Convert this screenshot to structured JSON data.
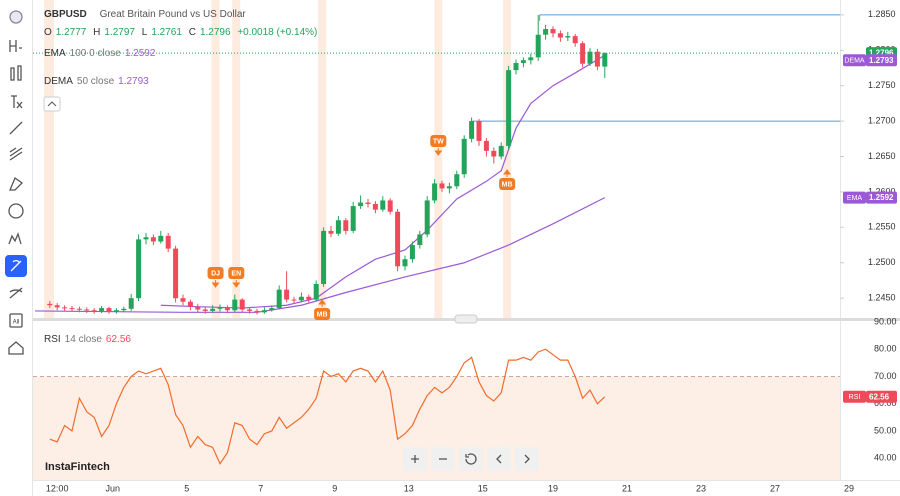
{
  "chart_data": {
    "type": "candlestick",
    "symbol": "GBPUSD",
    "description": "Great Britain Pound vs US Dollar",
    "ohlc_labels": [
      "O",
      "H",
      "L",
      "C"
    ],
    "change": "+0.0018 (+0.14%)",
    "up_color": "#22a45a",
    "down_color": "#ee4a5a",
    "xlim": [
      0,
      110
    ],
    "xticks": [
      {
        "value": 3,
        "label": "12:00"
      },
      {
        "value": 10.5,
        "label": "Jun"
      },
      {
        "value": 20.5,
        "label": "5"
      },
      {
        "value": 30.5,
        "label": "7"
      },
      {
        "value": 40.5,
        "label": "9"
      },
      {
        "value": 50.5,
        "label": "13"
      },
      {
        "value": 60.5,
        "label": "15"
      },
      {
        "value": 70,
        "label": "19"
      },
      {
        "value": 80,
        "label": "21"
      },
      {
        "value": 90,
        "label": "23"
      },
      {
        "value": 100,
        "label": "27"
      },
      {
        "value": 110,
        "label": "29"
      }
    ],
    "ylim": [
      1.2422,
      1.2871
    ],
    "yticks": [
      {
        "value": 1.245,
        "label": "1.2450"
      },
      {
        "value": 1.25,
        "label": "1.2500"
      },
      {
        "value": 1.255,
        "label": "1.2550"
      },
      {
        "value": 1.26,
        "label": "1.2600"
      },
      {
        "value": 1.265,
        "label": "1.2650"
      },
      {
        "value": 1.27,
        "label": "1.2700"
      },
      {
        "value": 1.275,
        "label": "1.2750"
      },
      {
        "value": 1.28,
        "label": "1.2800"
      },
      {
        "value": 1.285,
        "label": "1.2850"
      }
    ],
    "x": [
      2,
      3,
      4,
      5,
      6,
      7,
      8,
      9,
      10,
      11,
      12,
      13,
      14,
      15,
      16,
      17,
      18,
      19,
      20,
      21,
      22,
      23,
      24,
      25,
      26,
      27,
      28,
      29,
      30,
      31,
      32,
      33,
      34,
      35,
      36,
      37,
      38,
      39,
      40,
      41,
      42,
      43,
      44,
      45,
      46,
      47,
      48,
      49,
      50,
      51,
      52,
      53,
      54,
      55,
      56,
      57,
      58,
      59,
      60,
      61,
      62,
      63,
      64,
      65,
      66,
      67,
      68,
      69,
      70,
      71,
      72,
      73,
      74,
      75,
      76,
      77
    ],
    "ohlc": [
      [
        1.2442,
        1.2446,
        1.2436,
        1.244
      ],
      [
        1.244,
        1.2443,
        1.2433,
        1.2437
      ],
      [
        1.2437,
        1.244,
        1.2432,
        1.2436
      ],
      [
        1.2436,
        1.2439,
        1.2431,
        1.2435
      ],
      [
        1.2435,
        1.2438,
        1.243,
        1.2434
      ],
      [
        1.2434,
        1.2437,
        1.2429,
        1.2433
      ],
      [
        1.2433,
        1.2436,
        1.2428,
        1.2432
      ],
      [
        1.2432,
        1.2439,
        1.2429,
        1.2436
      ],
      [
        1.2436,
        1.2438,
        1.2428,
        1.2431
      ],
      [
        1.2431,
        1.2436,
        1.2428,
        1.2433
      ],
      [
        1.2433,
        1.2438,
        1.243,
        1.2435
      ],
      [
        1.2435,
        1.2456,
        1.2432,
        1.245
      ],
      [
        1.245,
        1.254,
        1.2446,
        1.2533
      ],
      [
        1.2533,
        1.2542,
        1.2526,
        1.2536
      ],
      [
        1.2536,
        1.254,
        1.2525,
        1.253
      ],
      [
        1.253,
        1.2545,
        1.2527,
        1.2538
      ],
      [
        1.2538,
        1.2542,
        1.2515,
        1.252
      ],
      [
        1.252,
        1.2524,
        1.2444,
        1.245
      ],
      [
        1.245,
        1.2455,
        1.244,
        1.2445
      ],
      [
        1.2445,
        1.2448,
        1.2433,
        1.2438
      ],
      [
        1.2438,
        1.2442,
        1.243,
        1.2434
      ],
      [
        1.2434,
        1.2438,
        1.2428,
        1.2432
      ],
      [
        1.2432,
        1.244,
        1.2429,
        1.2435
      ],
      [
        1.2435,
        1.2441,
        1.2431,
        1.2437
      ],
      [
        1.2437,
        1.244,
        1.2429,
        1.2433
      ],
      [
        1.2433,
        1.2455,
        1.243,
        1.2448
      ],
      [
        1.2448,
        1.245,
        1.243,
        1.2434
      ],
      [
        1.2434,
        1.2437,
        1.2428,
        1.2432
      ],
      [
        1.2432,
        1.2435,
        1.2427,
        1.243
      ],
      [
        1.243,
        1.2437,
        1.2428,
        1.2433
      ],
      [
        1.2433,
        1.244,
        1.2431,
        1.2436
      ],
      [
        1.2436,
        1.2468,
        1.2434,
        1.2462
      ],
      [
        1.2462,
        1.2488,
        1.2444,
        1.2448
      ],
      [
        1.2448,
        1.2452,
        1.2442,
        1.2447
      ],
      [
        1.2447,
        1.2458,
        1.2444,
        1.2452
      ],
      [
        1.2452,
        1.2455,
        1.2444,
        1.2448
      ],
      [
        1.2448,
        1.2475,
        1.2445,
        1.247
      ],
      [
        1.247,
        1.255,
        1.2466,
        1.2545
      ],
      [
        1.2545,
        1.2552,
        1.2536,
        1.2541
      ],
      [
        1.2541,
        1.2566,
        1.2538,
        1.256
      ],
      [
        1.256,
        1.2563,
        1.254,
        1.2545
      ],
      [
        1.2545,
        1.2586,
        1.2542,
        1.258
      ],
      [
        1.258,
        1.2595,
        1.2576,
        1.2585
      ],
      [
        1.2585,
        1.259,
        1.2578,
        1.2583
      ],
      [
        1.2583,
        1.2587,
        1.257,
        1.2575
      ],
      [
        1.2575,
        1.2594,
        1.2572,
        1.2588
      ],
      [
        1.2588,
        1.2591,
        1.2568,
        1.2572
      ],
      [
        1.2572,
        1.2576,
        1.2488,
        1.2495
      ],
      [
        1.2495,
        1.251,
        1.2489,
        1.2505
      ],
      [
        1.2505,
        1.253,
        1.25,
        1.2525
      ],
      [
        1.2525,
        1.2545,
        1.252,
        1.254
      ],
      [
        1.254,
        1.2594,
        1.2536,
        1.2588
      ],
      [
        1.2588,
        1.2618,
        1.2584,
        1.2612
      ],
      [
        1.2612,
        1.2616,
        1.26,
        1.2605
      ],
      [
        1.2605,
        1.2613,
        1.2598,
        1.2608
      ],
      [
        1.2608,
        1.263,
        1.2604,
        1.2625
      ],
      [
        1.2625,
        1.268,
        1.262,
        1.2675
      ],
      [
        1.2675,
        1.2705,
        1.267,
        1.27
      ],
      [
        1.27,
        1.2703,
        1.2665,
        1.2672
      ],
      [
        1.2672,
        1.2676,
        1.265,
        1.2658
      ],
      [
        1.2658,
        1.2663,
        1.264,
        1.265
      ],
      [
        1.265,
        1.267,
        1.2646,
        1.2665
      ],
      [
        1.2665,
        1.2778,
        1.266,
        1.2772
      ],
      [
        1.2772,
        1.2787,
        1.2766,
        1.2782
      ],
      [
        1.2782,
        1.279,
        1.2776,
        1.2786
      ],
      [
        1.2786,
        1.2795,
        1.278,
        1.279
      ],
      [
        1.279,
        1.285,
        1.2785,
        1.2822
      ],
      [
        1.2822,
        1.2836,
        1.2815,
        1.283
      ],
      [
        1.283,
        1.2834,
        1.2818,
        1.2824
      ],
      [
        1.2824,
        1.2828,
        1.2812,
        1.2818
      ],
      [
        1.2818,
        1.2826,
        1.2813,
        1.282
      ],
      [
        1.282,
        1.2823,
        1.2805,
        1.281
      ],
      [
        1.281,
        1.2813,
        1.2776,
        1.2781
      ],
      [
        1.2781,
        1.2803,
        1.2778,
        1.2798
      ],
      [
        1.2798,
        1.2802,
        1.2772,
        1.2777
      ],
      [
        1.2777,
        1.2797,
        1.2761,
        1.2796
      ]
    ],
    "price_line_color": "#22a45a",
    "price_lines": [
      {
        "value": 1.285,
        "from": 68.2
      },
      {
        "value": 1.27,
        "from": 59.1
      }
    ],
    "price_lines_color": "#5b9bd5",
    "ema": {
      "name": "EMA",
      "params": "100 0 close",
      "color": "#9b59d6",
      "x": [
        0,
        20,
        30,
        36,
        42,
        50,
        58,
        64,
        70,
        77
      ],
      "values": [
        1.2432,
        1.243,
        1.243,
        1.244,
        1.2458,
        1.248,
        1.25,
        1.2525,
        1.2555,
        1.2592
      ]
    },
    "dema": {
      "name": "DEMA",
      "params": "50 close",
      "color": "#9b59d6",
      "x": [
        17,
        22,
        28,
        34,
        38,
        42,
        46,
        50,
        53,
        57,
        61,
        63,
        65,
        67,
        70,
        73,
        77
      ],
      "values": [
        1.244,
        1.2438,
        1.2436,
        1.244,
        1.245,
        1.248,
        1.2505,
        1.2518,
        1.2546,
        1.259,
        1.2615,
        1.263,
        1.269,
        1.2725,
        1.275,
        1.2768,
        1.2793
      ]
    },
    "events": [
      {
        "label": "DJ",
        "x": 24.4,
        "position": "above"
      },
      {
        "label": "EN",
        "x": 27.2,
        "position": "above"
      },
      {
        "label": "MB",
        "x": 38.8,
        "position": "below"
      },
      {
        "label": "TW",
        "x": 54.5,
        "position": "above"
      },
      {
        "label": "MB",
        "x": 63.8,
        "position": "below"
      }
    ],
    "event_color": "#f47b20",
    "rsi": {
      "name": "RSI",
      "params": "14 close",
      "color": "#f26b2a",
      "level": 70,
      "ylim": [
        32,
        90
      ],
      "yticks": [
        {
          "value": 40,
          "label": "40.00"
        },
        {
          "value": 50,
          "label": "50.00"
        },
        {
          "value": 60,
          "label": "60.00"
        },
        {
          "value": 70,
          "label": "70.00"
        },
        {
          "value": 80,
          "label": "80.00"
        },
        {
          "value": 90,
          "label": "90.00"
        }
      ],
      "values": [
        47,
        46,
        52,
        50,
        62,
        57,
        55,
        48,
        52,
        60,
        66,
        70,
        72,
        71,
        72,
        73,
        67,
        56,
        52,
        44,
        48,
        45,
        44,
        38,
        42,
        53,
        52,
        47,
        45,
        49,
        50,
        55,
        51,
        53,
        55,
        58,
        62,
        72,
        70,
        71,
        68,
        72,
        73,
        72,
        68,
        72,
        65,
        47,
        49,
        52,
        58,
        63,
        66,
        64,
        66,
        70,
        75,
        77,
        68,
        63,
        61,
        64,
        76,
        76,
        77,
        76,
        79,
        80,
        78,
        76,
        76,
        70,
        62,
        65,
        60,
        62.56
      ]
    },
    "logo": "InstaFintech",
    "toolbar_badge": "All"
  }
}
